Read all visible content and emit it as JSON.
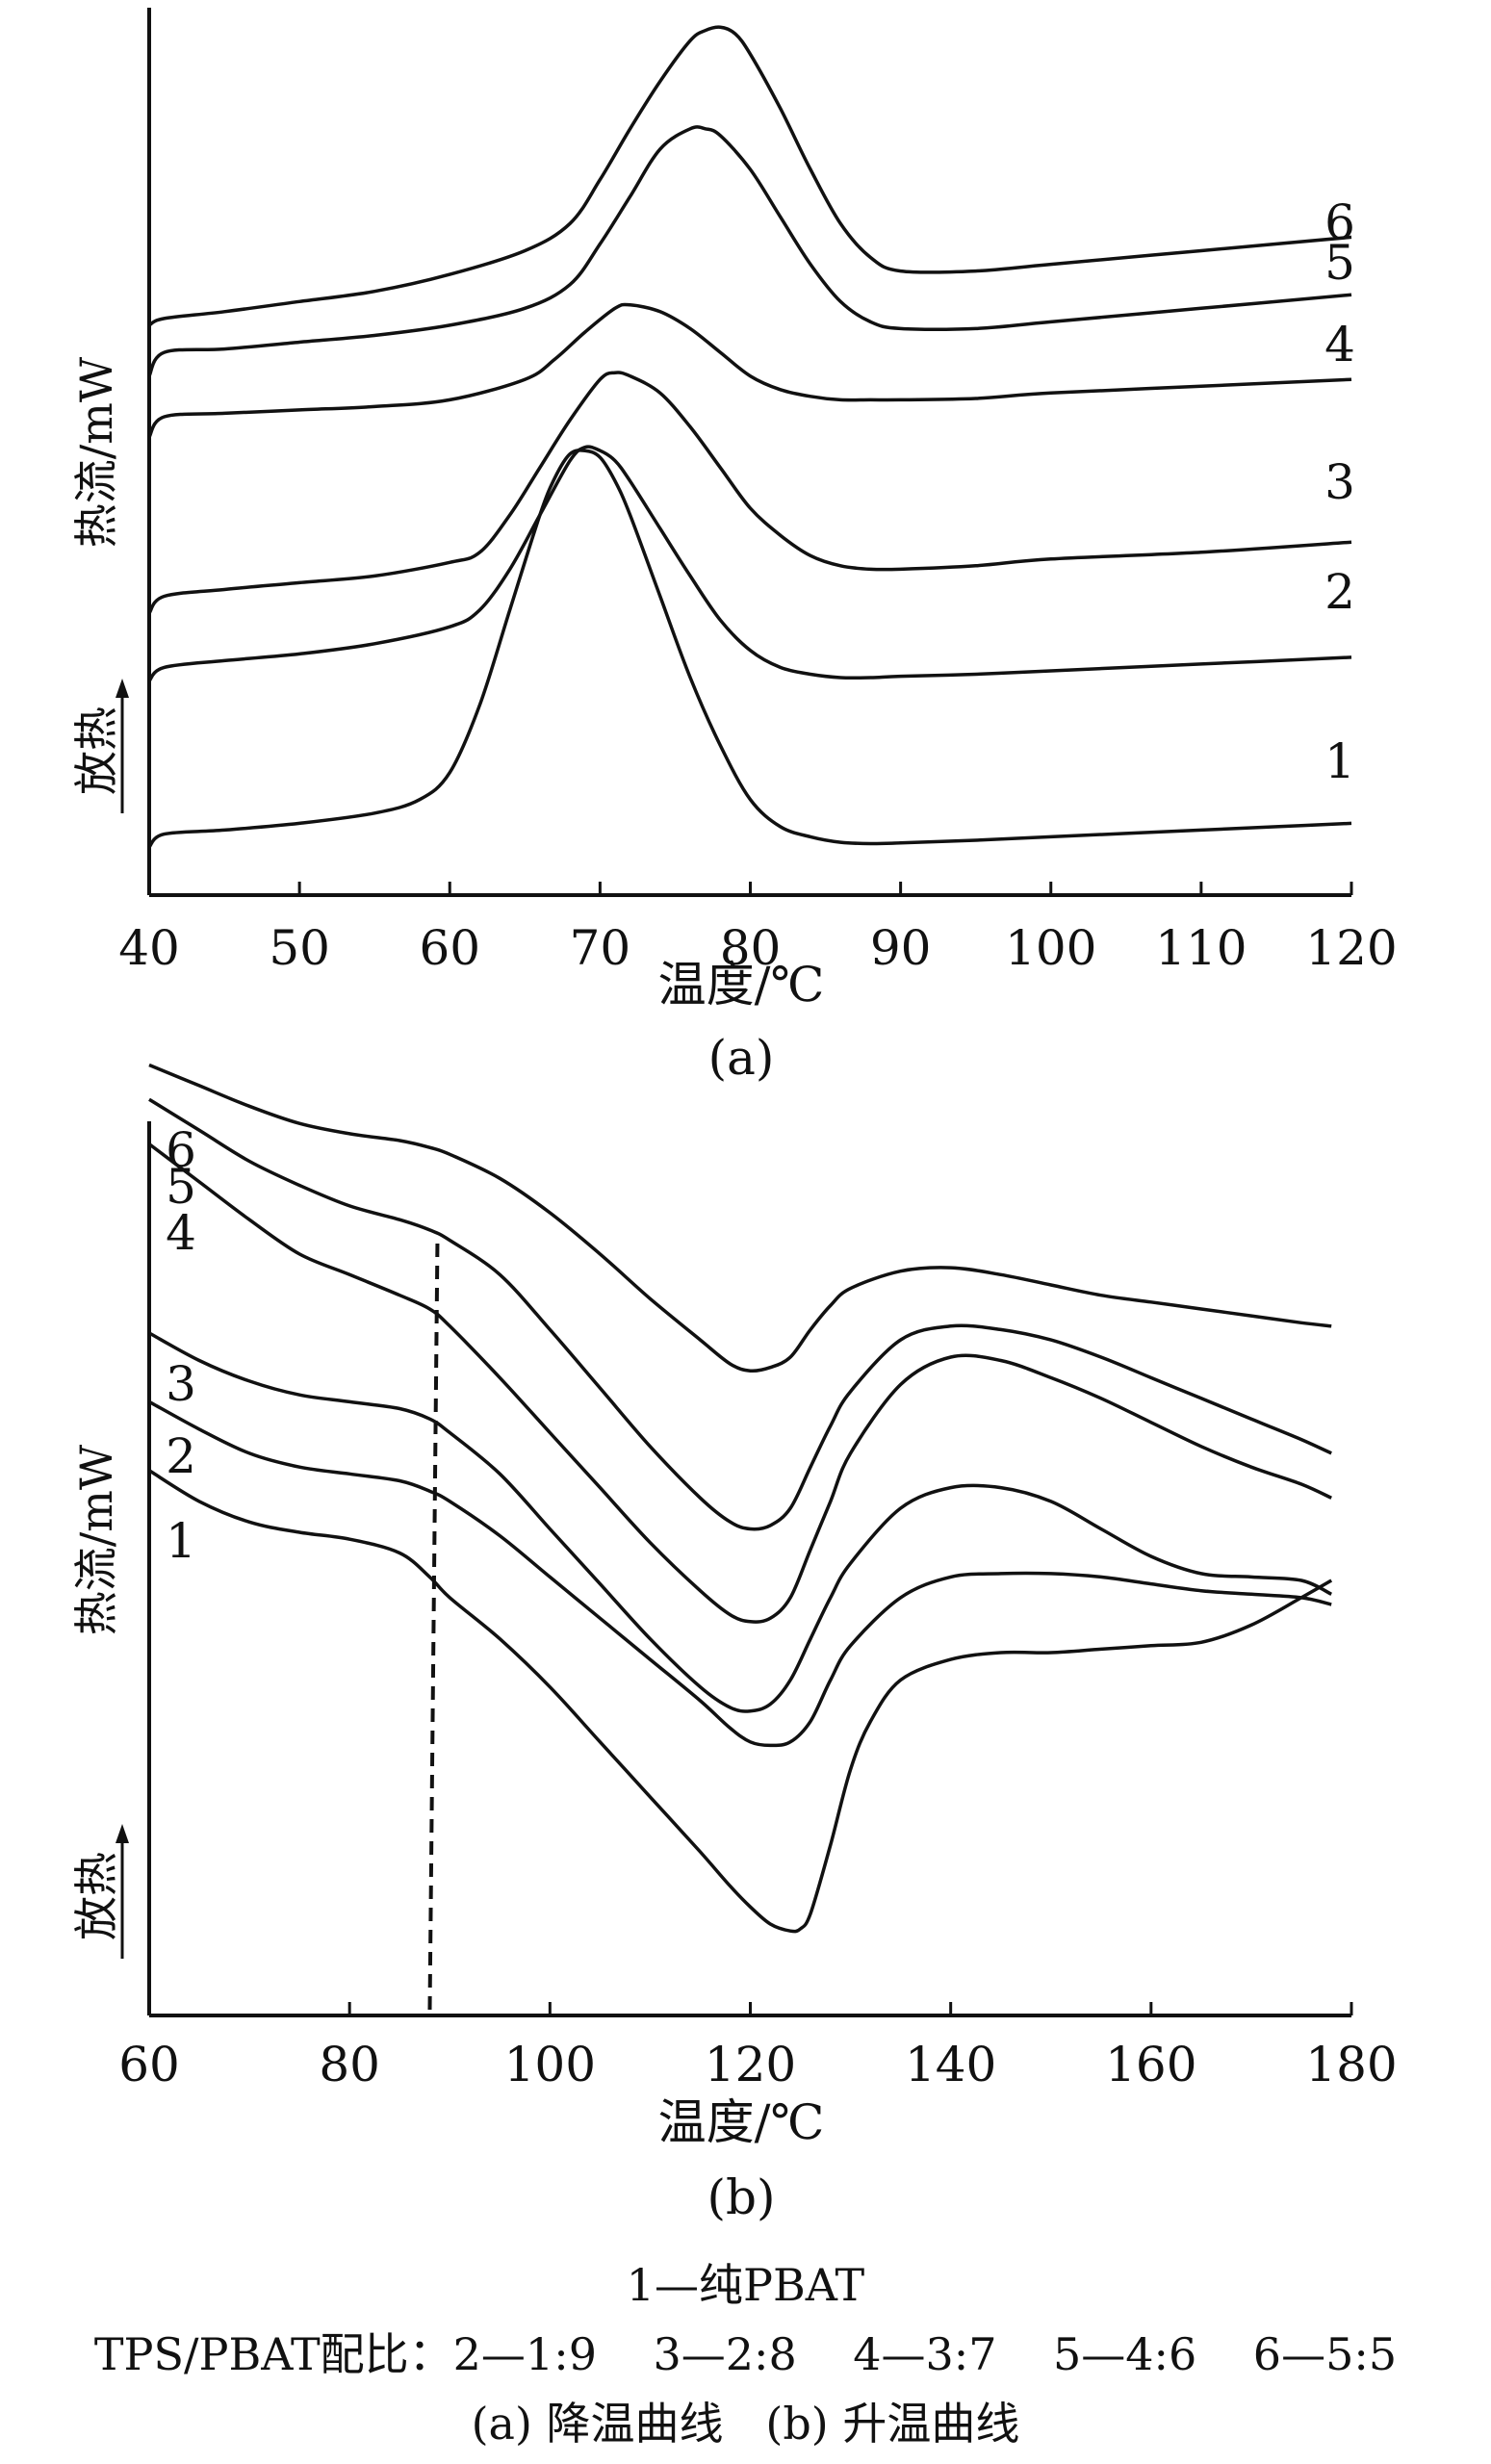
{
  "chart_data": [
    {
      "type": "line",
      "panel_label": "(a)",
      "xlabel": "温度/℃",
      "ylabel": "热流/mW",
      "exo_label": "放热",
      "xlim": [
        40,
        120
      ],
      "xticks": [
        40,
        50,
        60,
        70,
        80,
        90,
        100,
        110,
        120
      ],
      "series": [
        {
          "name": "1",
          "x": [
            40,
            41,
            45,
            50,
            55,
            58,
            60,
            62,
            64,
            66,
            67,
            68,
            69,
            70,
            71,
            72,
            74,
            76,
            78,
            80,
            82,
            84,
            86,
            88,
            90,
            95,
            100,
            105,
            110,
            115,
            120
          ],
          "y": [
            0,
            0.19,
            0.25,
            0.35,
            0.5,
            0.7,
            1.1,
            2.1,
            3.5,
            4.9,
            5.45,
            5.8,
            5.85,
            5.75,
            5.4,
            4.9,
            3.7,
            2.5,
            1.5,
            0.7,
            0.3,
            0.15,
            0.07,
            0.05,
            0.06,
            0.1,
            0.15,
            0.2,
            0.25,
            0.3,
            0.35
          ]
        },
        {
          "name": "2",
          "x": [
            40,
            41,
            45,
            50,
            55,
            60,
            62,
            64,
            66,
            68,
            69,
            70,
            71,
            72,
            74,
            76,
            78,
            80,
            82,
            84,
            86,
            88,
            90,
            95,
            100,
            110,
            120
          ],
          "y": [
            2.45,
            2.65,
            2.75,
            2.85,
            3.0,
            3.25,
            3.5,
            4.1,
            4.9,
            5.7,
            5.9,
            5.85,
            5.7,
            5.4,
            4.7,
            4.0,
            3.35,
            2.9,
            2.65,
            2.55,
            2.5,
            2.5,
            2.52,
            2.55,
            2.6,
            2.7,
            2.8
          ]
        },
        {
          "name": "3",
          "x": [
            40,
            41,
            45,
            50,
            55,
            60,
            62,
            64,
            66,
            68,
            70,
            71,
            72,
            74,
            76,
            78,
            80,
            82,
            84,
            86,
            88,
            90,
            95,
            100,
            110,
            120
          ],
          "y": [
            3.45,
            3.7,
            3.8,
            3.9,
            4.0,
            4.2,
            4.35,
            4.9,
            5.6,
            6.3,
            6.9,
            7.0,
            6.95,
            6.7,
            6.2,
            5.6,
            5.0,
            4.6,
            4.3,
            4.15,
            4.1,
            4.1,
            4.15,
            4.25,
            4.35,
            4.5
          ]
        },
        {
          "name": "4",
          "x": [
            40,
            41,
            45,
            50,
            55,
            60,
            65,
            67,
            69,
            71,
            72,
            74,
            76,
            78,
            80,
            82,
            84,
            86,
            88,
            90,
            95,
            100,
            110,
            120
          ],
          "y": [
            6.05,
            6.35,
            6.4,
            6.45,
            6.5,
            6.6,
            6.9,
            7.2,
            7.6,
            7.95,
            8.0,
            7.9,
            7.65,
            7.3,
            6.95,
            6.75,
            6.65,
            6.6,
            6.6,
            6.6,
            6.62,
            6.7,
            6.8,
            6.9
          ]
        },
        {
          "name": "5",
          "x": [
            40,
            41,
            45,
            50,
            55,
            60,
            65,
            68,
            70,
            72,
            74,
            76,
            77,
            78,
            80,
            82,
            84,
            86,
            88,
            90,
            95,
            100,
            110,
            120
          ],
          "y": [
            6.95,
            7.3,
            7.35,
            7.45,
            7.55,
            7.7,
            7.95,
            8.3,
            8.9,
            9.6,
            10.3,
            10.6,
            10.6,
            10.5,
            10.0,
            9.3,
            8.6,
            8.05,
            7.75,
            7.65,
            7.65,
            7.75,
            7.95,
            8.15
          ]
        },
        {
          "name": "6",
          "x": [
            40,
            41,
            45,
            50,
            55,
            60,
            65,
            68,
            70,
            72,
            74,
            76,
            77,
            78,
            79,
            80,
            82,
            84,
            86,
            88,
            90,
            95,
            100,
            110,
            120
          ],
          "y": [
            7.7,
            7.8,
            7.9,
            8.05,
            8.2,
            8.45,
            8.8,
            9.2,
            9.85,
            10.6,
            11.3,
            11.9,
            12.05,
            12.1,
            12.0,
            11.7,
            10.9,
            10.0,
            9.2,
            8.7,
            8.5,
            8.5,
            8.6,
            8.8,
            9.0
          ]
        }
      ]
    },
    {
      "type": "line",
      "panel_label": "(b)",
      "xlabel": "温度/℃",
      "ylabel": "热流/mW",
      "exo_label": "放热",
      "xlim": [
        60,
        180
      ],
      "xticks": [
        60,
        80,
        100,
        120,
        140,
        160,
        180
      ],
      "reference_line_x": 88,
      "series": [
        {
          "name": "1",
          "x": [
            60,
            65,
            70,
            75,
            80,
            85,
            88,
            90,
            95,
            100,
            105,
            110,
            115,
            118,
            120,
            122,
            124,
            125,
            126,
            128,
            130,
            132,
            135,
            140,
            145,
            150,
            155,
            160,
            165,
            170,
            175,
            178
          ],
          "y": [
            6.95,
            6.5,
            6.2,
            6.05,
            5.95,
            5.75,
            5.4,
            5.1,
            4.5,
            3.8,
            3.0,
            2.2,
            1.4,
            0.9,
            0.6,
            0.35,
            0.25,
            0.28,
            0.5,
            1.5,
            2.6,
            3.3,
            3.9,
            4.2,
            4.3,
            4.3,
            4.35,
            4.4,
            4.45,
            4.7,
            5.1,
            5.35
          ]
        },
        {
          "name": "2",
          "x": [
            60,
            65,
            70,
            75,
            80,
            85,
            88,
            90,
            95,
            100,
            105,
            110,
            115,
            118,
            120,
            122,
            124,
            126,
            128,
            130,
            135,
            140,
            145,
            150,
            155,
            160,
            165,
            170,
            175,
            178
          ],
          "y": [
            7.95,
            7.55,
            7.2,
            7.0,
            6.9,
            6.8,
            6.65,
            6.5,
            6.0,
            5.4,
            4.8,
            4.2,
            3.6,
            3.2,
            3.0,
            2.95,
            3.0,
            3.3,
            3.9,
            4.4,
            5.1,
            5.4,
            5.45,
            5.45,
            5.4,
            5.3,
            5.2,
            5.15,
            5.1,
            5.0
          ]
        },
        {
          "name": "3",
          "x": [
            60,
            65,
            70,
            75,
            80,
            85,
            88,
            90,
            95,
            100,
            105,
            110,
            115,
            118,
            120,
            122,
            124,
            126,
            128,
            130,
            135,
            140,
            145,
            150,
            155,
            160,
            165,
            170,
            175,
            178
          ],
          "y": [
            8.95,
            8.55,
            8.25,
            8.05,
            7.95,
            7.85,
            7.7,
            7.5,
            6.9,
            6.1,
            5.3,
            4.5,
            3.8,
            3.5,
            3.45,
            3.55,
            3.9,
            4.5,
            5.1,
            5.6,
            6.4,
            6.7,
            6.7,
            6.5,
            6.1,
            5.7,
            5.45,
            5.4,
            5.35,
            5.15
          ]
        },
        {
          "name": "4",
          "x": [
            60,
            65,
            70,
            75,
            80,
            85,
            88,
            90,
            95,
            100,
            105,
            110,
            115,
            118,
            120,
            122,
            124,
            126,
            128,
            130,
            135,
            140,
            145,
            150,
            155,
            160,
            165,
            170,
            175,
            178
          ],
          "y": [
            11.7,
            11.15,
            10.6,
            10.1,
            9.8,
            9.5,
            9.3,
            9.05,
            8.3,
            7.5,
            6.7,
            5.9,
            5.2,
            4.85,
            4.75,
            4.8,
            5.1,
            5.8,
            6.5,
            7.2,
            8.2,
            8.6,
            8.55,
            8.3,
            8.0,
            7.65,
            7.3,
            7.0,
            6.75,
            6.55
          ]
        },
        {
          "name": "5",
          "x": [
            60,
            65,
            70,
            75,
            80,
            85,
            88,
            90,
            95,
            100,
            105,
            110,
            115,
            118,
            120,
            122,
            124,
            126,
            128,
            130,
            135,
            140,
            145,
            150,
            155,
            160,
            165,
            170,
            175,
            178
          ],
          "y": [
            12.35,
            11.9,
            11.45,
            11.1,
            10.8,
            10.6,
            10.45,
            10.3,
            9.8,
            9.0,
            8.15,
            7.3,
            6.55,
            6.2,
            6.1,
            6.15,
            6.4,
            7.0,
            7.6,
            8.1,
            8.85,
            9.05,
            9.0,
            8.85,
            8.6,
            8.3,
            8.0,
            7.7,
            7.4,
            7.2
          ]
        },
        {
          "name": "6",
          "x": [
            60,
            65,
            70,
            75,
            80,
            85,
            88,
            90,
            95,
            100,
            105,
            110,
            115,
            118,
            120,
            122,
            124,
            126,
            128,
            130,
            135,
            140,
            145,
            150,
            155,
            160,
            165,
            170,
            175,
            178
          ],
          "y": [
            12.85,
            12.55,
            12.25,
            12.0,
            11.85,
            11.75,
            11.65,
            11.55,
            11.2,
            10.7,
            10.1,
            9.45,
            8.85,
            8.5,
            8.4,
            8.45,
            8.6,
            9.0,
            9.35,
            9.6,
            9.85,
            9.9,
            9.8,
            9.65,
            9.5,
            9.4,
            9.3,
            9.2,
            9.1,
            9.05
          ]
        }
      ]
    }
  ],
  "caption": {
    "line1": "1—纯PBAT",
    "line2": "TPS/PBAT配比：2—1:9    3—2:8    4—3:7    5—4:6    6—5:5",
    "line3": "(a) 降温曲线   (b) 升温曲线"
  }
}
